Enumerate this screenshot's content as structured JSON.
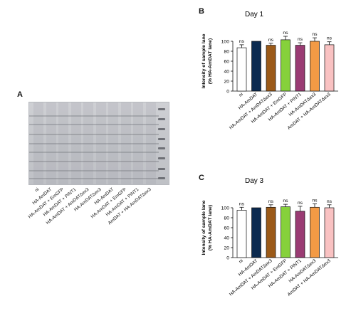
{
  "panel_a": {
    "letter": "A",
    "lanes": [
      "ni",
      "HA-AmDAT",
      "HA-AmDAT + EmGFP",
      "HA-AmDAT + PINT1",
      "HA-AmDAT + AmDATΔex3",
      "HA-AmDATΔex3",
      "HA-AmDAT",
      "HA-AmDAT + EmGFP",
      "HA-AmDAT + PINT1",
      "AmDAT + HA-AmDATΔex3"
    ]
  },
  "chart_data": [
    {
      "type": "bar",
      "panel": "B",
      "title": "Day 1",
      "ylabel_line1": "Intensity of sample lane",
      "ylabel_line2": "(% HA-AmDAT lane)",
      "ylim": [
        0,
        120
      ],
      "yticks": [
        0,
        20,
        40,
        60,
        80,
        100
      ],
      "categories": [
        "ni",
        "HA-AmDAT",
        "HA-AmDAT + AmDATΔex3",
        "HA-AmDAT + EmGFP",
        "HA-AmDAT + PINT1",
        "HA-AmDATΔex3",
        "AmDAT + HA-AmDATΔex3"
      ],
      "values": [
        87,
        100,
        92,
        103,
        92,
        100,
        93
      ],
      "errors": [
        6,
        0,
        4,
        7,
        5,
        7,
        6
      ],
      "annotations": [
        "ns",
        "",
        "ns",
        "ns",
        "ns",
        "ns",
        "ns"
      ],
      "colors": [
        "#ffffff",
        "#0b2a4f",
        "#9b5a18",
        "#86d13b",
        "#9a3b73",
        "#f39a45",
        "#f9c2c2"
      ]
    },
    {
      "type": "bar",
      "panel": "C",
      "title": "Day 3",
      "ylabel_line1": "Intensity of sample lane",
      "ylabel_line2": "(% HA-AmDAT lane)",
      "ylim": [
        0,
        120
      ],
      "yticks": [
        0,
        20,
        40,
        60,
        80,
        100
      ],
      "categories": [
        "ni",
        "HA-AmDAT",
        "HA-AmDAT + AmDATΔex3",
        "HA-AmDAT + EmGFP",
        "HA-AmDAT + PINT1",
        "HA-AmDATΔex3",
        "AmDAT + HA-AmDATΔex3"
      ],
      "values": [
        95,
        100,
        101,
        102,
        93,
        101,
        100
      ],
      "errors": [
        6,
        0,
        5,
        5,
        10,
        7,
        6
      ],
      "annotations": [
        "ns",
        "",
        "ns",
        "ns",
        "ns",
        "ns",
        "ns"
      ],
      "colors": [
        "#ffffff",
        "#0b2a4f",
        "#9b5a18",
        "#86d13b",
        "#9a3b73",
        "#f39a45",
        "#f9c2c2"
      ]
    }
  ]
}
